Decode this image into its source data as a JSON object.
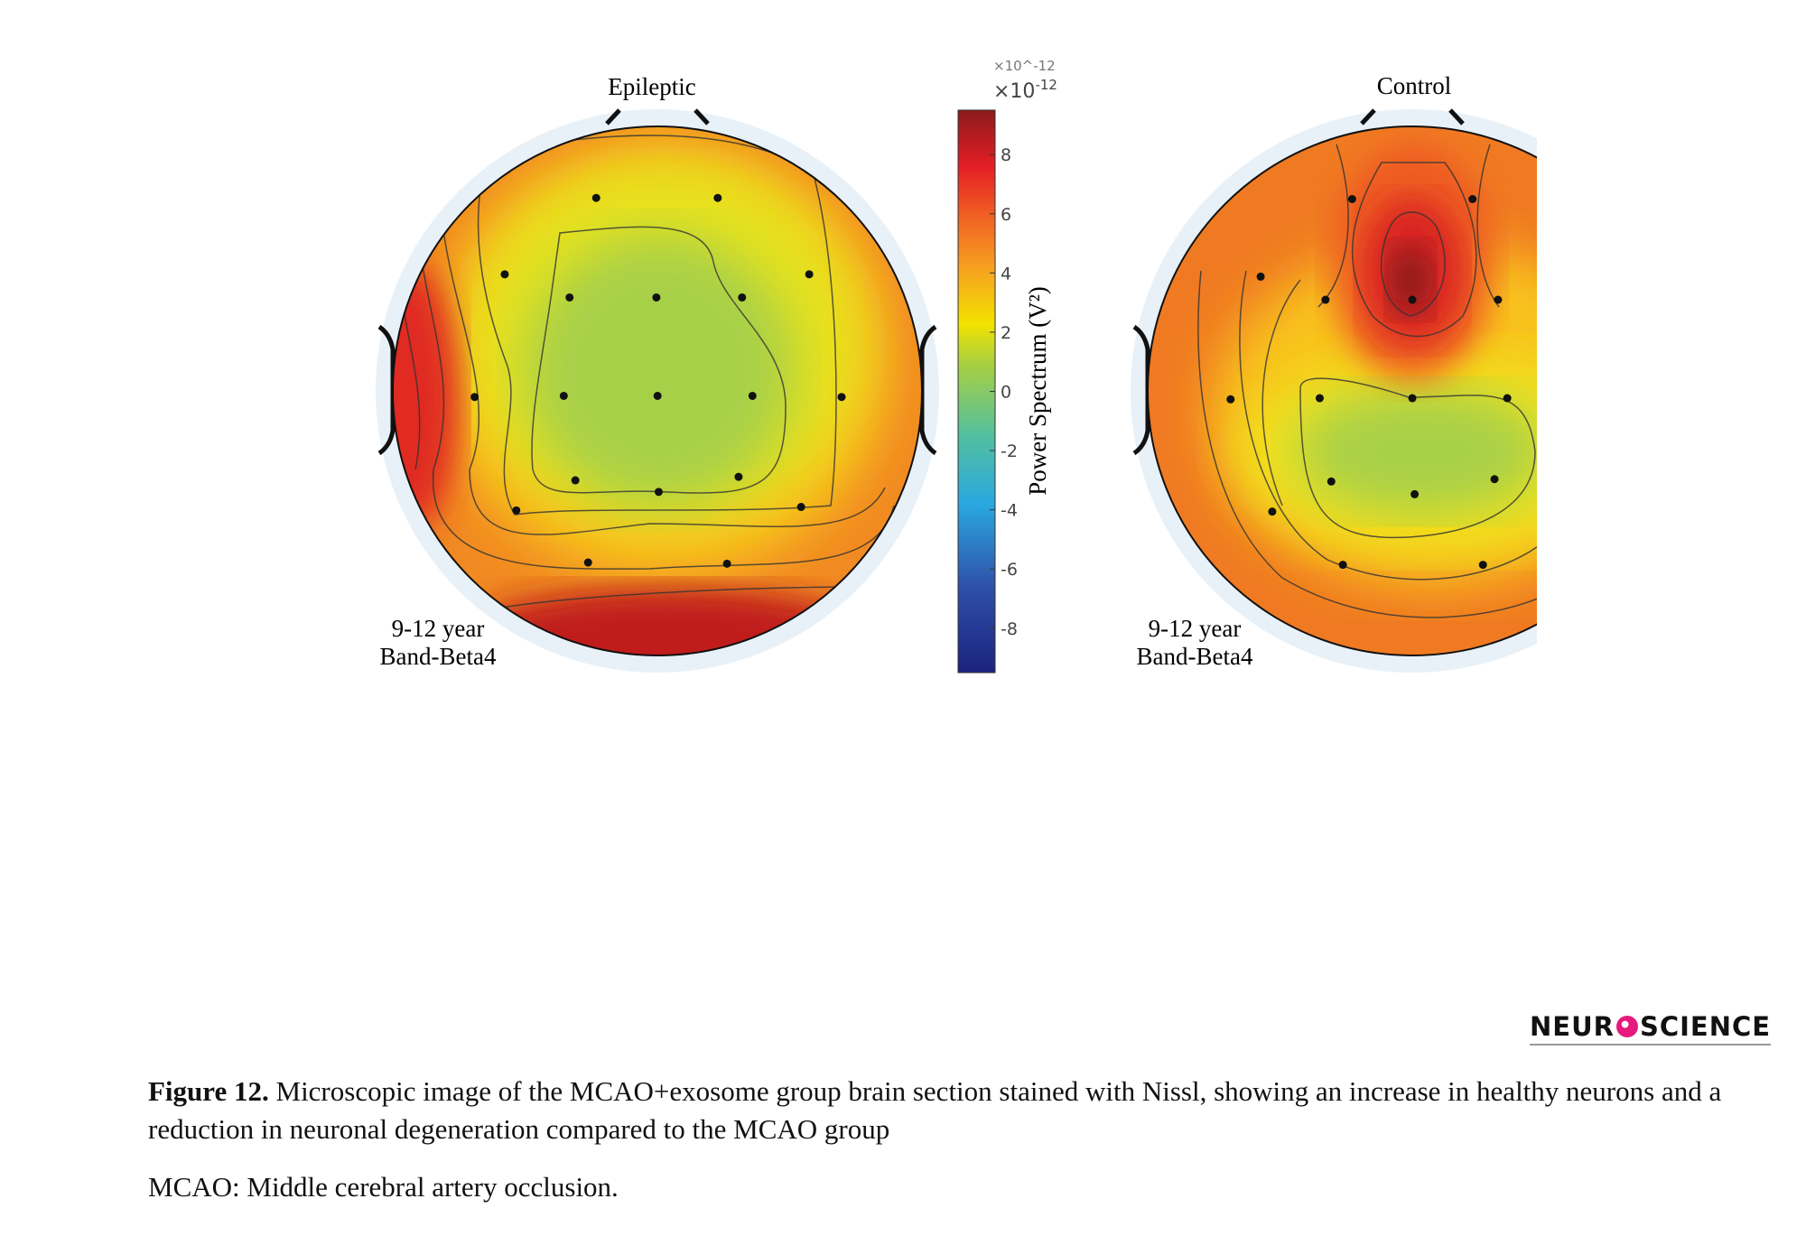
{
  "figure": {
    "panels": [
      {
        "title": "Epileptic",
        "label_line1": "9-12 year",
        "label_line2": "Band-Beta4"
      },
      {
        "title": "Control",
        "label_line1": "9-12 year",
        "label_line2": "Band-Beta4"
      }
    ],
    "colorbar": {
      "multiplier": "×10",
      "exponent": "-12",
      "label": "Power Spectrum (V²)",
      "ticks": [
        "8",
        "6",
        "4",
        "2",
        "0",
        "-2",
        "-4",
        "-6",
        "-8"
      ],
      "range": [
        -9.5,
        9.5
      ],
      "colormap": "jet"
    }
  },
  "chart_data": {
    "type": "heatmap",
    "titles": [
      "Epileptic",
      "Control"
    ],
    "colorbar_label": "Power Spectrum (V²)",
    "colorbar_scale": "×10^-12",
    "colorbar_ticks": [
      8,
      6,
      4,
      2,
      0,
      -2,
      -4,
      -6,
      -8
    ]
  },
  "logo": {
    "text_left": "NEUR",
    "text_right": "SCIENCE"
  },
  "caption": {
    "label": "Figure 12.",
    "text": " Microscopic image of the MCAO+exosome group brain section stained with Nissl, showing an increase in healthy neurons and a reduction in neuronal degeneration compared to the MCAO group",
    "note": "MCAO: Middle cerebral artery occlusion."
  }
}
